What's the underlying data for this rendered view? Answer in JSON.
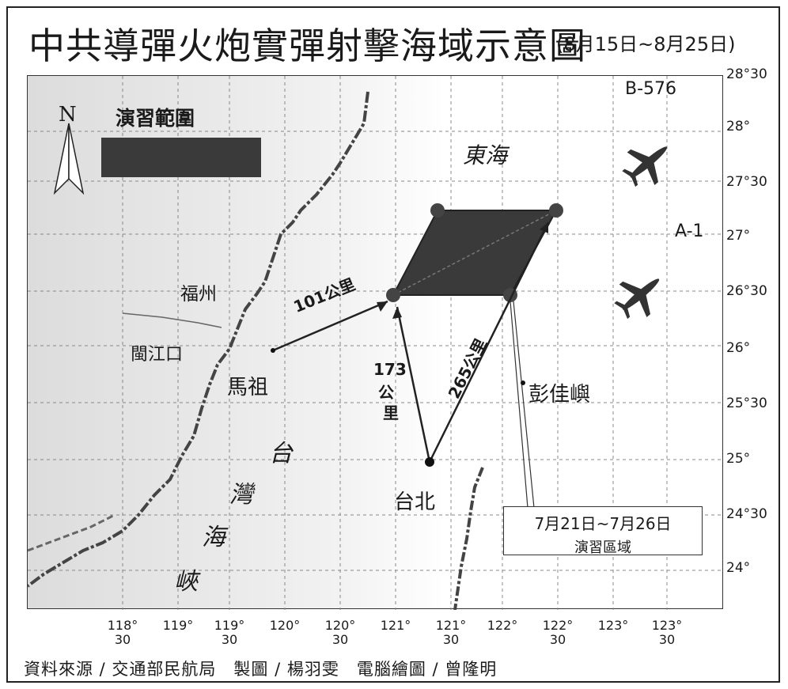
{
  "title": {
    "main": "中共導彈火炮實彈射擊海域示意圖",
    "dates": "(8月15日~8月25日)"
  },
  "legend": {
    "label": "演習範圍",
    "swatch_color": "#3a3a3a"
  },
  "north_arrow": {
    "label": "N"
  },
  "latitude_labels": [
    "28°30",
    "28°",
    "27°30",
    "27°",
    "26°30",
    "26°",
    "25°30",
    "25°",
    "24°30",
    "24°"
  ],
  "longitude_labels": [
    {
      "deg": "118°",
      "min": "30"
    },
    {
      "deg": "119°",
      "min": ""
    },
    {
      "deg": "119°",
      "min": "30"
    },
    {
      "deg": "120°",
      "min": ""
    },
    {
      "deg": "120°",
      "min": "30"
    },
    {
      "deg": "121°",
      "min": ""
    },
    {
      "deg": "121°",
      "min": "30"
    },
    {
      "deg": "122°",
      "min": ""
    },
    {
      "deg": "122°",
      "min": "30"
    },
    {
      "deg": "123°",
      "min": ""
    },
    {
      "deg": "123°",
      "min": "30"
    }
  ],
  "places": {
    "fuzhou": "福州",
    "minjiang": "閩江口",
    "mazu": "馬祖",
    "taipei": "台北",
    "pengjia": "彭佳嶼",
    "east_sea": "東海",
    "strait": [
      "台",
      "灣",
      "海",
      "峽"
    ]
  },
  "routes": {
    "b576": "B-576",
    "a1": "A-1"
  },
  "distances": {
    "mazu": "101公里",
    "taipei_north_num": "173",
    "taipei_north_unit1": "公",
    "taipei_north_unit2": "里",
    "taipei_ne": "265公里"
  },
  "drill_callout": {
    "line1": "7月21日~7月26日",
    "line2": "演習區域"
  },
  "footer": "資料來源 / 交通部民航局　製圖 / 楊羽雯　電腦繪圖 / 曾隆明"
}
